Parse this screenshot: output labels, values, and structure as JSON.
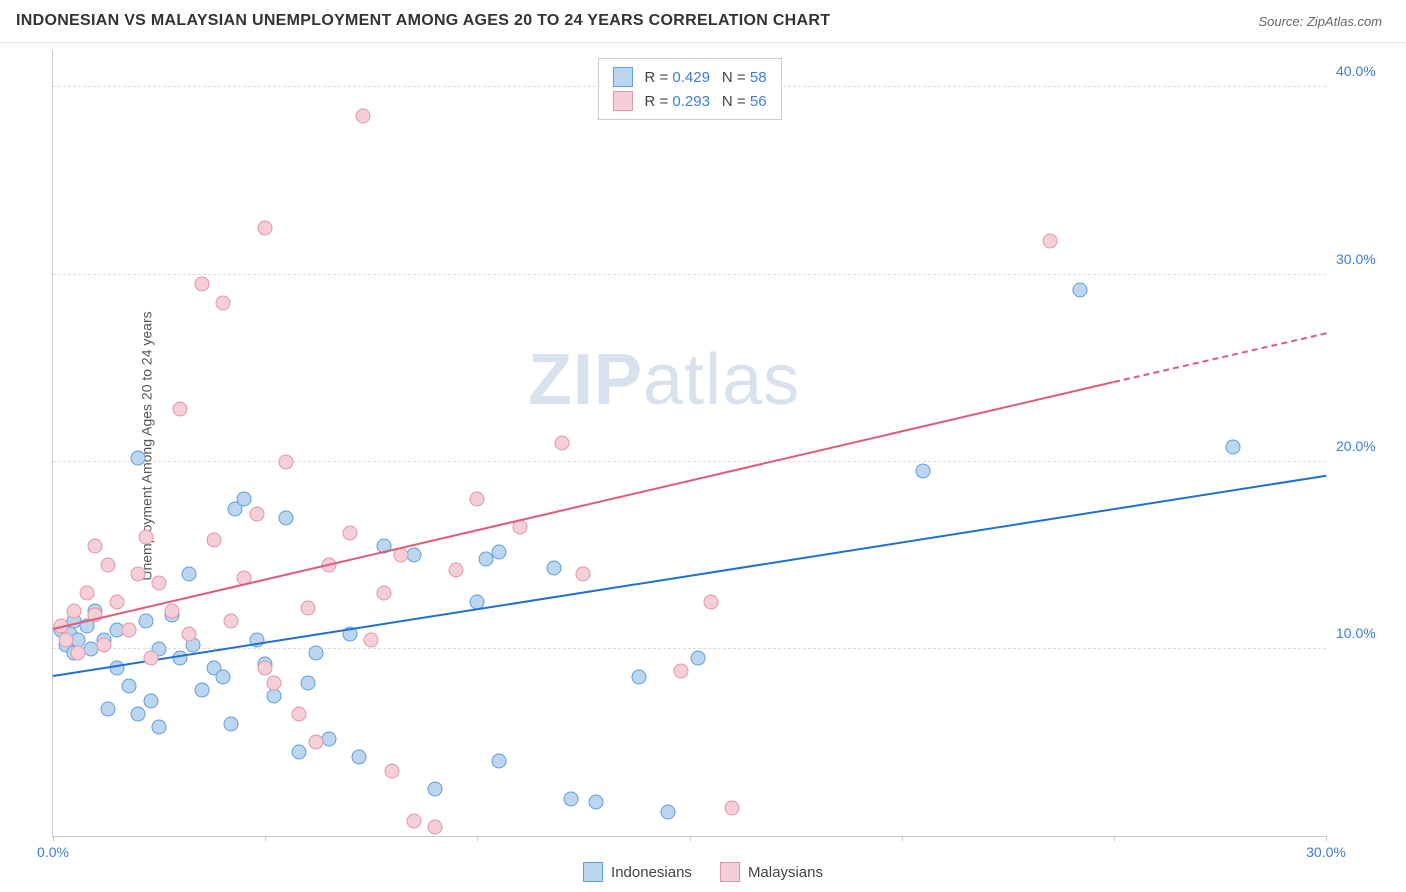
{
  "header": {
    "title": "INDONESIAN VS MALAYSIAN UNEMPLOYMENT AMONG AGES 20 TO 24 YEARS CORRELATION CHART",
    "source": "Source: ZipAtlas.com"
  },
  "chart": {
    "type": "scatter",
    "y_axis_label": "Unemployment Among Ages 20 to 24 years",
    "xlim": [
      0,
      30
    ],
    "ylim": [
      0,
      42
    ],
    "x_ticks": [
      0,
      5,
      10,
      15,
      20,
      25,
      30
    ],
    "x_tick_labels": {
      "0": "0.0%",
      "30": "30.0%"
    },
    "y_ticks": [
      10,
      20,
      30,
      40
    ],
    "y_tick_labels": {
      "10": "10.0%",
      "20": "20.0%",
      "30": "30.0%",
      "40": "40.0%"
    },
    "background_color": "#ffffff",
    "grid_color": "#dddddd",
    "axis_color": "#c8c8c8",
    "tick_label_color": "#3b7dd8",
    "watermark_text_a": "ZIP",
    "watermark_text_b": "atlas",
    "series": [
      {
        "name": "Indonesians",
        "fill_color": "#bcd6f0",
        "stroke_color": "#5f9dd9",
        "trend_color": "#1f6fd4",
        "trend_style": "solid",
        "R": "0.429",
        "N": "58",
        "trend": {
          "x1": 0,
          "y1": 8.5,
          "x2": 30,
          "y2": 19.2
        },
        "points": [
          [
            0.2,
            11.0
          ],
          [
            0.3,
            10.2
          ],
          [
            0.4,
            10.8
          ],
          [
            0.5,
            11.5
          ],
          [
            0.5,
            9.8
          ],
          [
            0.6,
            10.5
          ],
          [
            0.8,
            11.2
          ],
          [
            0.9,
            10.0
          ],
          [
            1.0,
            12.0
          ],
          [
            1.2,
            10.5
          ],
          [
            1.3,
            6.8
          ],
          [
            1.5,
            11.0
          ],
          [
            1.5,
            9.0
          ],
          [
            1.8,
            8.0
          ],
          [
            2.0,
            20.2
          ],
          [
            2.0,
            6.5
          ],
          [
            2.2,
            11.5
          ],
          [
            2.3,
            7.2
          ],
          [
            2.5,
            10.0
          ],
          [
            2.5,
            5.8
          ],
          [
            2.8,
            11.8
          ],
          [
            3.0,
            9.5
          ],
          [
            3.2,
            14.0
          ],
          [
            3.3,
            10.2
          ],
          [
            3.5,
            7.8
          ],
          [
            3.8,
            9.0
          ],
          [
            4.0,
            8.5
          ],
          [
            4.2,
            6.0
          ],
          [
            4.3,
            17.5
          ],
          [
            4.5,
            18.0
          ],
          [
            4.8,
            10.5
          ],
          [
            5.0,
            9.2
          ],
          [
            5.2,
            7.5
          ],
          [
            5.5,
            17.0
          ],
          [
            5.8,
            4.5
          ],
          [
            6.0,
            8.2
          ],
          [
            6.2,
            9.8
          ],
          [
            6.5,
            5.2
          ],
          [
            7.0,
            10.8
          ],
          [
            7.2,
            4.2
          ],
          [
            7.8,
            15.5
          ],
          [
            8.5,
            15.0
          ],
          [
            9.0,
            2.5
          ],
          [
            10.0,
            12.5
          ],
          [
            10.2,
            14.8
          ],
          [
            10.5,
            15.2
          ],
          [
            10.5,
            4.0
          ],
          [
            11.8,
            14.3
          ],
          [
            12.2,
            2.0
          ],
          [
            12.8,
            1.8
          ],
          [
            13.8,
            8.5
          ],
          [
            14.5,
            1.3
          ],
          [
            15.2,
            9.5
          ],
          [
            20.5,
            19.5
          ],
          [
            24.2,
            29.2
          ],
          [
            27.8,
            20.8
          ]
        ]
      },
      {
        "name": "Malaysians",
        "fill_color": "#f5cfd8",
        "stroke_color": "#e394a7",
        "trend_color": "#e05a7a",
        "trend_style": "solid",
        "R": "0.293",
        "N": "56",
        "trend": {
          "x1": 0,
          "y1": 11.0,
          "x2": 25,
          "y2": 24.2
        },
        "trend_dashed": {
          "x1": 25,
          "y1": 24.2,
          "x2": 30,
          "y2": 26.8
        },
        "points": [
          [
            0.2,
            11.2
          ],
          [
            0.3,
            10.5
          ],
          [
            0.5,
            12.0
          ],
          [
            0.6,
            9.8
          ],
          [
            0.8,
            13.0
          ],
          [
            1.0,
            11.8
          ],
          [
            1.0,
            15.5
          ],
          [
            1.2,
            10.2
          ],
          [
            1.3,
            14.5
          ],
          [
            1.5,
            12.5
          ],
          [
            1.8,
            11.0
          ],
          [
            2.0,
            14.0
          ],
          [
            2.2,
            16.0
          ],
          [
            2.3,
            9.5
          ],
          [
            2.5,
            13.5
          ],
          [
            2.8,
            12.0
          ],
          [
            3.0,
            22.8
          ],
          [
            3.2,
            10.8
          ],
          [
            3.5,
            29.5
          ],
          [
            3.8,
            15.8
          ],
          [
            4.0,
            28.5
          ],
          [
            4.2,
            11.5
          ],
          [
            4.5,
            13.8
          ],
          [
            4.8,
            17.2
          ],
          [
            5.0,
            32.5
          ],
          [
            5.0,
            9.0
          ],
          [
            5.2,
            8.2
          ],
          [
            5.5,
            20.0
          ],
          [
            5.8,
            6.5
          ],
          [
            6.0,
            12.2
          ],
          [
            6.2,
            5.0
          ],
          [
            6.5,
            14.5
          ],
          [
            7.0,
            16.2
          ],
          [
            7.3,
            38.5
          ],
          [
            7.5,
            10.5
          ],
          [
            7.8,
            13.0
          ],
          [
            8.0,
            3.5
          ],
          [
            8.2,
            15.0
          ],
          [
            8.5,
            0.8
          ],
          [
            9.0,
            0.5
          ],
          [
            9.5,
            14.2
          ],
          [
            10.0,
            18.0
          ],
          [
            11.0,
            16.5
          ],
          [
            12.0,
            21.0
          ],
          [
            12.5,
            14.0
          ],
          [
            14.8,
            8.8
          ],
          [
            15.5,
            12.5
          ],
          [
            16.0,
            1.5
          ],
          [
            23.5,
            31.8
          ]
        ]
      }
    ]
  }
}
